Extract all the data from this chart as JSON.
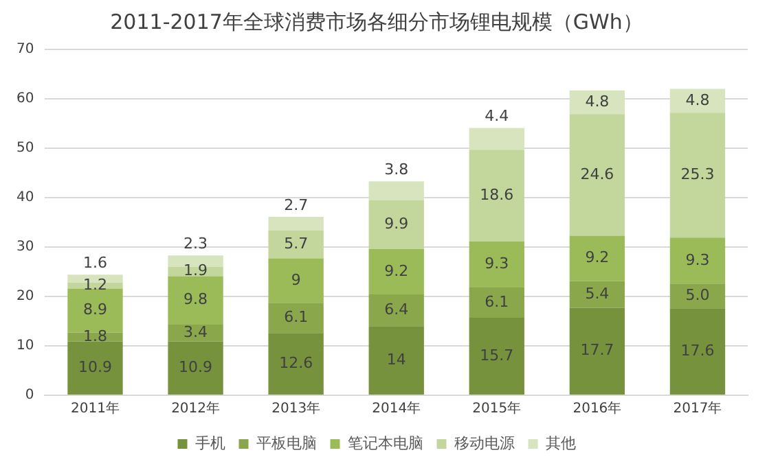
{
  "chart_data": {
    "type": "bar",
    "stacked": true,
    "title": "2011-2017年全球消费市场各细分市场锂电规模（GWh）",
    "categories": [
      "2011年",
      "2012年",
      "2013年",
      "2014年",
      "2015年",
      "2016年",
      "2017年"
    ],
    "series": [
      {
        "name": "手机",
        "color": "#76923c",
        "values": [
          10.9,
          10.9,
          12.6,
          14,
          15.7,
          17.7,
          17.6
        ],
        "value_labels": [
          "10.9",
          "10.9",
          "12.6",
          "14",
          "15.7",
          "17.7",
          "17.6"
        ]
      },
      {
        "name": "平板电脑",
        "color": "#8aa84b",
        "values": [
          1.8,
          3.4,
          6.1,
          6.4,
          6.1,
          5.4,
          5.0
        ],
        "value_labels": [
          "1.8",
          "3.4",
          "6.1",
          "6.4",
          "6.1",
          "5.4",
          "5.0"
        ]
      },
      {
        "name": "笔记本电脑",
        "color": "#9bbb59",
        "values": [
          8.9,
          9.8,
          9,
          9.2,
          9.3,
          9.2,
          9.3
        ],
        "value_labels": [
          "8.9",
          "9.8",
          "9",
          "9.2",
          "9.3",
          "9.2",
          "9.3"
        ]
      },
      {
        "name": "移动电源",
        "color": "#c3d69b",
        "values": [
          1.2,
          1.9,
          5.7,
          9.9,
          18.6,
          24.6,
          25.3
        ],
        "value_labels": [
          "1.2",
          "1.9",
          "5.7",
          "9.9",
          "18.6",
          "24.6",
          "25.3"
        ]
      },
      {
        "name": "其他",
        "color": "#d7e4bd",
        "values": [
          1.6,
          2.3,
          2.7,
          3.8,
          4.4,
          4.8,
          4.8
        ],
        "value_labels": [
          "1.6",
          "2.3",
          "2.7",
          "3.8",
          "4.4",
          "4.8",
          "4.8"
        ]
      }
    ],
    "ylim": [
      0,
      70
    ],
    "yticks": [
      0,
      10,
      20,
      30,
      40,
      50,
      60,
      70
    ],
    "grid": "y",
    "legend": "bottom"
  }
}
